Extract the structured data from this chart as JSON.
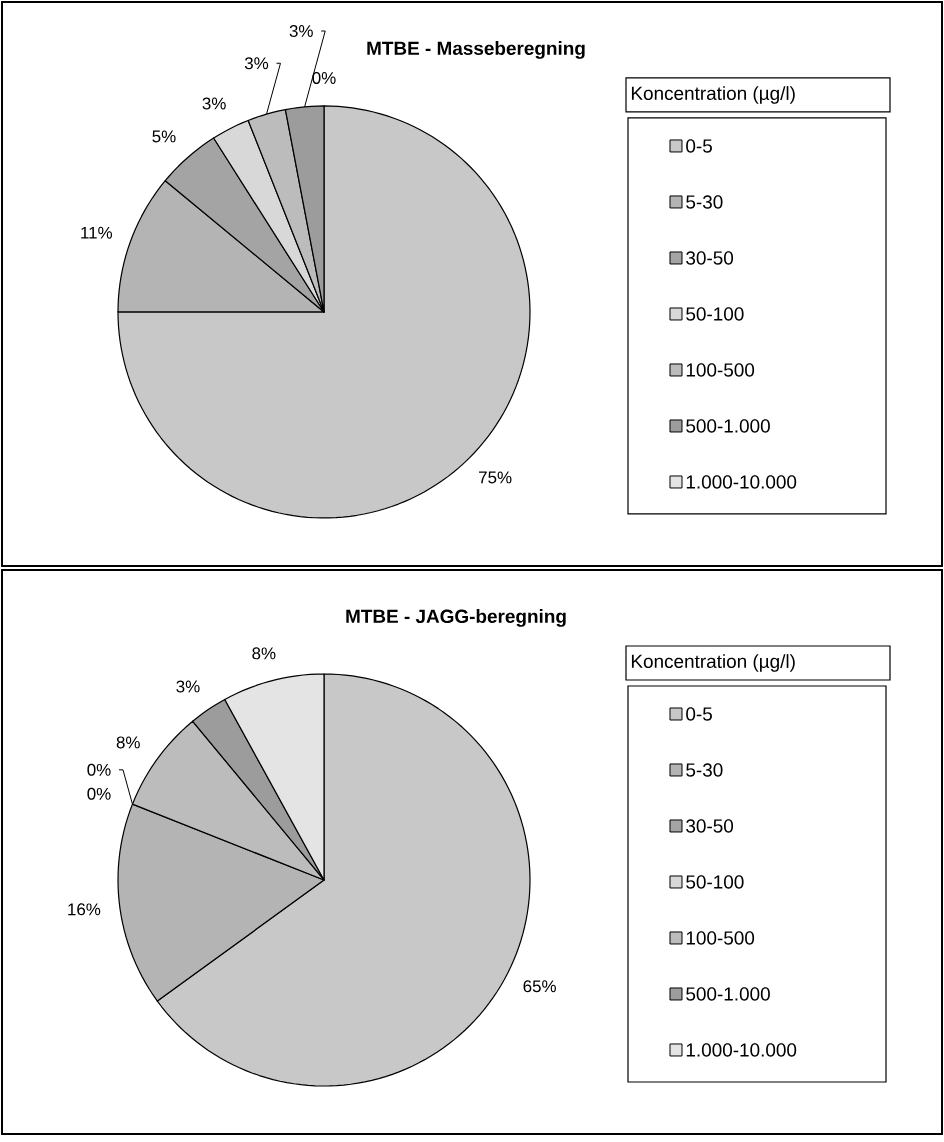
{
  "chart_data": [
    {
      "type": "pie",
      "title": "MTBE - Masseberegning",
      "legend_title": "Koncentration (µg/l)",
      "legend": "right",
      "categories": [
        "0-5",
        "5-30",
        "30-50",
        "50-100",
        "100-500",
        "500-1.000",
        "1.000-10.000"
      ],
      "values": [
        75,
        11,
        5,
        3,
        3,
        3,
        0
      ],
      "colors": [
        "#c8c8c8",
        "#b4b4b4",
        "#a4a4a4",
        "#d8d8d8",
        "#bcbcbc",
        "#9c9c9c",
        "#e4e4e4"
      ],
      "value_labels": [
        "75%",
        "11%",
        "5%",
        "3%",
        "3%",
        "3%",
        "0%"
      ]
    },
    {
      "type": "pie",
      "title": "MTBE - JAGG-beregning",
      "legend_title": "Koncentration (µg/l)",
      "legend": "right",
      "categories": [
        "0-5",
        "5-30",
        "30-50",
        "50-100",
        "100-500",
        "500-1.000",
        "1.000-10.000"
      ],
      "values": [
        65,
        16,
        0,
        0,
        8,
        3,
        8
      ],
      "colors": [
        "#c8c8c8",
        "#b4b4b4",
        "#a4a4a4",
        "#d8d8d8",
        "#bcbcbc",
        "#9c9c9c",
        "#e4e4e4"
      ],
      "value_labels": [
        "65%",
        "16%",
        "0%",
        "0%",
        "8%",
        "3%",
        "8%"
      ]
    }
  ]
}
